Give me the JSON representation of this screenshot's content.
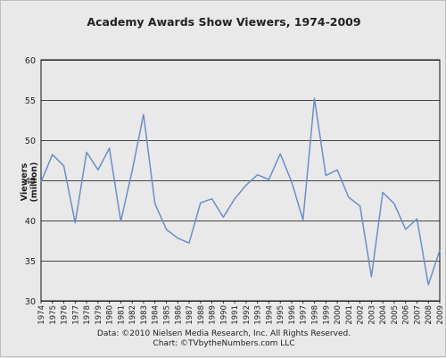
{
  "chart_data": {
    "type": "line",
    "title": "Academy Awards Show Viewers, 1974-2009",
    "xlabel": "",
    "ylabel": "Viewers (million)",
    "ylim": [
      30,
      60
    ],
    "yticks": [
      30,
      35,
      40,
      45,
      50,
      55,
      60
    ],
    "grid": "horizontal",
    "colors": {
      "line": "#6a8fc9",
      "grid": "#111111",
      "background": "#e9e9e9"
    },
    "x": [
      "1974",
      "1975",
      "1976",
      "1977",
      "1978",
      "1979",
      "1980",
      "1981",
      "1982",
      "1983",
      "1984",
      "1985",
      "1986",
      "1987",
      "1988",
      "1989",
      "1990",
      "1991",
      "1992",
      "1993",
      "1994",
      "1995",
      "1996",
      "1997",
      "1998",
      "1999",
      "2000",
      "2001",
      "2002",
      "2003",
      "2004",
      "2005",
      "2006",
      "2007",
      "2008",
      "2009"
    ],
    "series": [
      {
        "values": [
          44.8,
          48.2,
          46.8,
          39.7,
          48.5,
          46.3,
          49.0,
          39.9,
          46.2,
          53.2,
          42.1,
          38.9,
          37.8,
          37.2,
          42.2,
          42.7,
          40.4,
          42.7,
          44.4,
          45.7,
          45.1,
          48.3,
          44.8,
          40.1,
          55.2,
          45.6,
          46.3,
          42.9,
          41.8,
          33.0,
          43.5,
          42.1,
          38.9,
          40.2,
          32.0,
          36.3
        ]
      }
    ]
  },
  "footer": {
    "line1": "Data: ©2010 Nielsen Media Research, Inc. All Rights Reserved.",
    "line2": "Chart: ©TVbytheNumbers.com LLC"
  }
}
